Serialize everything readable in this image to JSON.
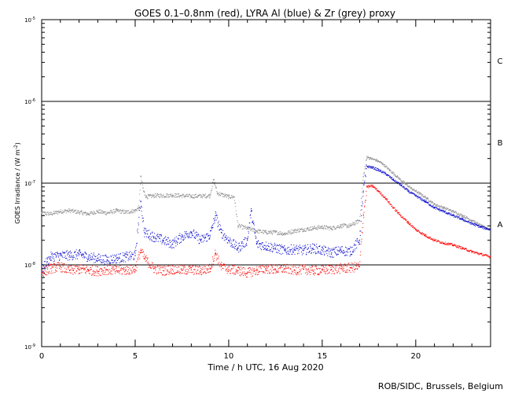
{
  "chart_data": {
    "type": "scatter",
    "title": "GOES 0.1–0.8nm (red), LYRA Al (blue) & Zr (grey) proxy",
    "xlabel": "Time / h UTC, 16 Aug 2020",
    "ylabel_prefix": "GOES Irradiance / (W m",
    "ylabel_exp": "-2",
    "ylabel_suffix": ")",
    "credit": "ROB/SIDC, Brussels, Belgium",
    "xlim": [
      0,
      24
    ],
    "ylim_log": [
      -9,
      -5
    ],
    "x_ticks": [
      0,
      5,
      10,
      15,
      20
    ],
    "y_ticks": [
      {
        "exp": -9,
        "label": "10",
        "sup": "-9"
      },
      {
        "exp": -8,
        "label": "10",
        "sup": "-8"
      },
      {
        "exp": -7,
        "label": "10",
        "sup": "-7"
      },
      {
        "exp": -6,
        "label": "10",
        "sup": "-6"
      },
      {
        "exp": -5,
        "label": "10",
        "sup": "-5"
      }
    ],
    "flare_levels": [
      {
        "label": "A",
        "exp": -8,
        "label_exp": -7.5
      },
      {
        "label": "B",
        "exp": -7,
        "label_exp": -6.5
      },
      {
        "label": "C",
        "exp": -6,
        "label_exp": -5.5
      }
    ],
    "series": [
      {
        "name": "LYRA Zr (grey)",
        "color": "#8c8c8c",
        "points": [
          [
            0,
            4.3e-08
          ],
          [
            0.5,
            4.2e-08
          ],
          [
            1,
            4.5e-08
          ],
          [
            1.5,
            4.6e-08
          ],
          [
            2,
            4.4e-08
          ],
          [
            2.5,
            4.2e-08
          ],
          [
            3,
            4.5e-08
          ],
          [
            3.5,
            4.3e-08
          ],
          [
            4,
            4.6e-08
          ],
          [
            4.5,
            4.4e-08
          ],
          [
            5,
            4.6e-08
          ],
          [
            5.2,
            5e-08
          ],
          [
            5.3,
            1.2e-07
          ],
          [
            5.45,
            8e-08
          ],
          [
            5.6,
            6.8e-08
          ],
          [
            6,
            7e-08
          ],
          [
            7,
            7.1e-08
          ],
          [
            8,
            6.9e-08
          ],
          [
            9,
            7e-08
          ],
          [
            9.2,
            1.1e-07
          ],
          [
            9.4,
            7.5e-08
          ],
          [
            10,
            6.8e-08
          ],
          [
            10.3,
            6.8e-08
          ],
          [
            10.5,
            3e-08
          ],
          [
            11,
            2.8e-08
          ],
          [
            11.5,
            2.6e-08
          ],
          [
            12,
            2.5e-08
          ],
          [
            12.5,
            2.5e-08
          ],
          [
            13,
            2.4e-08
          ],
          [
            13.5,
            2.6e-08
          ],
          [
            14,
            2.7e-08
          ],
          [
            14.5,
            2.8e-08
          ],
          [
            15,
            2.9e-08
          ],
          [
            15.5,
            2.8e-08
          ],
          [
            16,
            3e-08
          ],
          [
            16.5,
            3e-08
          ],
          [
            17,
            3.5e-08
          ],
          [
            17.2,
            1.2e-07
          ],
          [
            17.4,
            2.1e-07
          ],
          [
            17.6,
            2e-07
          ],
          [
            17.9,
            1.9e-07
          ],
          [
            18.2,
            1.75e-07
          ],
          [
            18.6,
            1.45e-07
          ],
          [
            19,
            1.2e-07
          ],
          [
            19.4,
            1e-07
          ],
          [
            19.8,
            8.5e-08
          ],
          [
            20.2,
            7.5e-08
          ],
          [
            20.6,
            6.5e-08
          ],
          [
            21,
            5.5e-08
          ],
          [
            21.5,
            5e-08
          ],
          [
            22,
            4.5e-08
          ],
          [
            22.5,
            4e-08
          ],
          [
            23,
            3.5e-08
          ],
          [
            23.5,
            3e-08
          ],
          [
            24,
            2.7e-08
          ]
        ]
      },
      {
        "name": "LYRA Al (blue)",
        "color": "#0000cc",
        "points": [
          [
            0,
            8.5e-09
          ],
          [
            0.3,
            1.1e-08
          ],
          [
            0.5,
            1.25e-08
          ],
          [
            1,
            1.3e-08
          ],
          [
            1.5,
            1.3e-08
          ],
          [
            2,
            1.35e-08
          ],
          [
            2.5,
            1.25e-08
          ],
          [
            3,
            1.2e-08
          ],
          [
            3.5,
            1.15e-08
          ],
          [
            4,
            1.2e-08
          ],
          [
            4.5,
            1.25e-08
          ],
          [
            5,
            1.3e-08
          ],
          [
            5.3,
            6e-08
          ],
          [
            5.5,
            2.5e-08
          ],
          [
            6,
            2.2e-08
          ],
          [
            6.5,
            2e-08
          ],
          [
            7,
            1.8e-08
          ],
          [
            7.5,
            2.2e-08
          ],
          [
            8,
            2.5e-08
          ],
          [
            8.5,
            2e-08
          ],
          [
            9,
            2.3e-08
          ],
          [
            9.3,
            4e-08
          ],
          [
            9.6,
            2.5e-08
          ],
          [
            10,
            2e-08
          ],
          [
            10.5,
            1.6e-08
          ],
          [
            11,
            2e-08
          ],
          [
            11.2,
            4.5e-08
          ],
          [
            11.5,
            1.8e-08
          ],
          [
            12,
            1.7e-08
          ],
          [
            12.5,
            1.6e-08
          ],
          [
            13,
            1.5e-08
          ],
          [
            13.5,
            1.55e-08
          ],
          [
            14,
            1.5e-08
          ],
          [
            14.5,
            1.6e-08
          ],
          [
            15,
            1.5e-08
          ],
          [
            15.5,
            1.4e-08
          ],
          [
            16,
            1.5e-08
          ],
          [
            16.5,
            1.45e-08
          ],
          [
            17,
            2e-08
          ],
          [
            17.2,
            8e-08
          ],
          [
            17.4,
            1.6e-07
          ],
          [
            17.7,
            1.55e-07
          ],
          [
            18,
            1.45e-07
          ],
          [
            18.4,
            1.3e-07
          ],
          [
            18.8,
            1.1e-07
          ],
          [
            19.2,
            9.5e-08
          ],
          [
            19.6,
            8e-08
          ],
          [
            20,
            7e-08
          ],
          [
            20.5,
            6e-08
          ],
          [
            21,
            5e-08
          ],
          [
            21.5,
            4.5e-08
          ],
          [
            22,
            4e-08
          ],
          [
            22.5,
            3.6e-08
          ],
          [
            23,
            3.2e-08
          ],
          [
            23.5,
            2.9e-08
          ],
          [
            24,
            2.7e-08
          ]
        ]
      },
      {
        "name": "GOES 0.1–0.8nm (red)",
        "color": "#ff0000",
        "points": [
          [
            0,
            8e-09
          ],
          [
            0.5,
            9e-09
          ],
          [
            1,
            9.5e-09
          ],
          [
            1.5,
            8.5e-09
          ],
          [
            2,
            8.8e-09
          ],
          [
            2.5,
            8.6e-09
          ],
          [
            3,
            8.4e-09
          ],
          [
            3.5,
            8.7e-09
          ],
          [
            4,
            8.5e-09
          ],
          [
            4.5,
            8.6e-09
          ],
          [
            5,
            8.8e-09
          ],
          [
            5.3,
            1.5e-08
          ],
          [
            5.5,
            1.2e-08
          ],
          [
            6,
            9e-09
          ],
          [
            6.5,
            8.5e-09
          ],
          [
            7,
            8.8e-09
          ],
          [
            7.5,
            8.6e-09
          ],
          [
            8,
            8.7e-09
          ],
          [
            8.5,
            8.5e-09
          ],
          [
            9,
            9e-09
          ],
          [
            9.3,
            1.4e-08
          ],
          [
            9.6,
            9.5e-09
          ],
          [
            10,
            8.8e-09
          ],
          [
            10.5,
            8.5e-09
          ],
          [
            11,
            8e-09
          ],
          [
            11.5,
            8.5e-09
          ],
          [
            12,
            9e-09
          ],
          [
            12.5,
            8.8e-09
          ],
          [
            13,
            9e-09
          ],
          [
            13.5,
            8.6e-09
          ],
          [
            14,
            8.8e-09
          ],
          [
            14.5,
            8.5e-09
          ],
          [
            15,
            8.6e-09
          ],
          [
            15.5,
            8.8e-09
          ],
          [
            16,
            9e-09
          ],
          [
            16.5,
            9.2e-09
          ],
          [
            17,
            9.5e-09
          ],
          [
            17.2,
            4e-08
          ],
          [
            17.4,
            9e-08
          ],
          [
            17.7,
            9.2e-08
          ],
          [
            18,
            8e-08
          ],
          [
            18.4,
            6.5e-08
          ],
          [
            18.8,
            5e-08
          ],
          [
            19.2,
            4e-08
          ],
          [
            19.6,
            3.3e-08
          ],
          [
            20,
            2.7e-08
          ],
          [
            20.5,
            2.3e-08
          ],
          [
            21,
            2e-08
          ],
          [
            21.5,
            1.85e-08
          ],
          [
            22,
            1.75e-08
          ],
          [
            22.5,
            1.6e-08
          ],
          [
            23,
            1.45e-08
          ],
          [
            23.5,
            1.35e-08
          ],
          [
            24,
            1.25e-08
          ]
        ]
      }
    ]
  }
}
